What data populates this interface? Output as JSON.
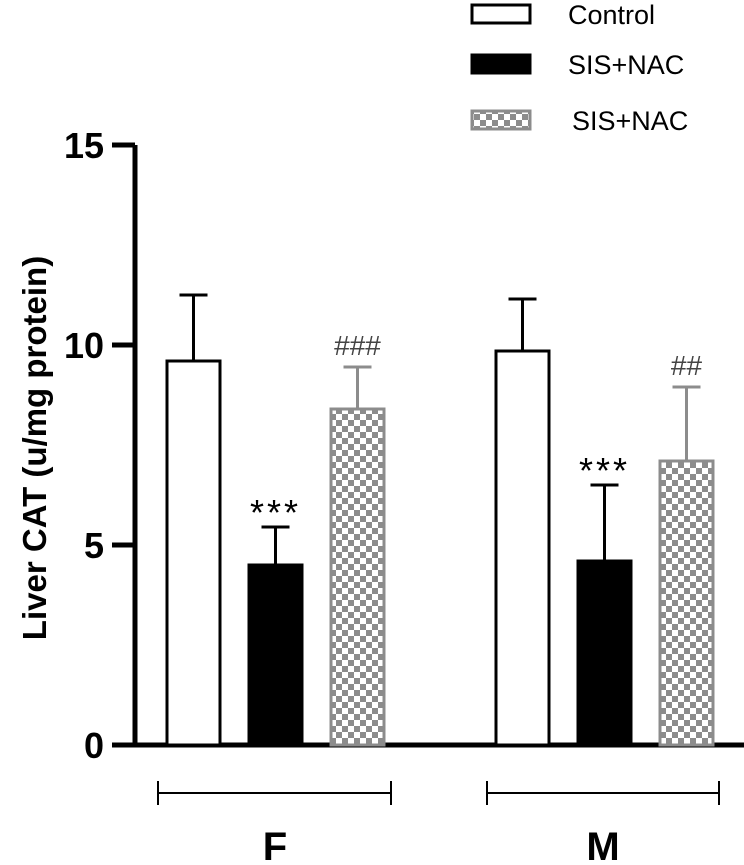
{
  "chart_data": {
    "type": "bar",
    "categories": [
      "F",
      "M"
    ],
    "ylabel": "Liver CAT (u/mg protein)",
    "ylim": [
      0,
      15
    ],
    "yticks": [
      "0",
      "5",
      "10",
      "15"
    ],
    "series": [
      {
        "name": "Control",
        "pattern": "solid",
        "fill": "#ffffff",
        "stroke": "#000000",
        "values": [
          9.6,
          9.85
        ],
        "errors": [
          1.65,
          1.3
        ],
        "annotations": [
          "",
          ""
        ]
      },
      {
        "name": "SIS+NAC",
        "pattern": "solid",
        "fill": "#000000",
        "stroke": "#000000",
        "values": [
          4.5,
          4.6
        ],
        "errors": [
          0.95,
          1.9
        ],
        "annotations": [
          "***",
          "***"
        ]
      },
      {
        "name": "SIS+NAC",
        "pattern": "checker",
        "fill": "#8c8c8c",
        "stroke": "#8c8c8c",
        "values": [
          8.4,
          7.1
        ],
        "errors": [
          1.05,
          1.85
        ],
        "annotations": [
          "###",
          "##"
        ]
      }
    ],
    "legend_position": "top-right"
  }
}
